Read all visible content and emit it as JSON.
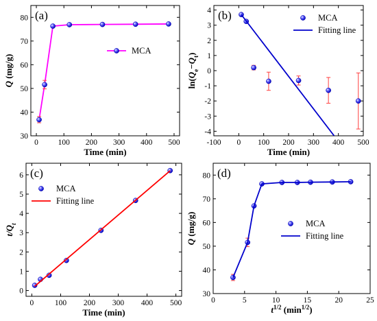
{
  "chart_data": [
    {
      "id": "a",
      "panel_label": "(a)",
      "type": "line",
      "xlabel": "Time (min)",
      "ylabel": "Q (mg/g)",
      "xlim": [
        -20,
        520
      ],
      "ylim": [
        30,
        85
      ],
      "xticks": [
        0,
        100,
        200,
        300,
        400,
        500
      ],
      "yticks": [
        30,
        40,
        50,
        60,
        70,
        80
      ],
      "legend_position": "center-right",
      "series": [
        {
          "name": "MCA",
          "kind": "line-marker",
          "color": "#ff00ff",
          "marker": "sphere",
          "x": [
            10,
            30,
            60,
            120,
            240,
            360,
            480
          ],
          "y": [
            36.8,
            51.6,
            76.3,
            76.9,
            77.0,
            77.1,
            77.2
          ],
          "err": [
            1.3,
            1.8,
            0,
            0,
            0,
            0,
            0
          ]
        }
      ]
    },
    {
      "id": "b",
      "panel_label": "(b)",
      "type": "scatter",
      "xlabel": "Time (min)",
      "ylabel": "ln(Qe−Qt)",
      "xlim": [
        -100,
        500
      ],
      "ylim": [
        -4.3,
        4.3
      ],
      "xticks": [
        -100,
        0,
        100,
        200,
        300,
        400,
        500
      ],
      "yticks": [
        -4,
        -3,
        -2,
        -1,
        0,
        1,
        2,
        3,
        4
      ],
      "legend_position": "top-right",
      "series": [
        {
          "name": "MCA",
          "kind": "scatter",
          "color": "#1a1aff",
          "marker": "sphere",
          "x": [
            10,
            30,
            60,
            120,
            240,
            360,
            480
          ],
          "y": [
            3.7,
            3.25,
            0.2,
            -0.7,
            -0.65,
            -1.3,
            -2.0
          ],
          "err": [
            0,
            0,
            0.15,
            0.6,
            0.3,
            0.85,
            1.85
          ]
        },
        {
          "name": "Fitting line",
          "kind": "line",
          "color": "#0000cc",
          "x": [
            10,
            383
          ],
          "y": [
            3.7,
            -4.3
          ]
        }
      ]
    },
    {
      "id": "c",
      "panel_label": "(c)",
      "type": "scatter",
      "xlabel": "Time (min)",
      "ylabel": "t/Qt",
      "xlim": [
        -20,
        520
      ],
      "ylim": [
        -0.3,
        6.6
      ],
      "xticks": [
        0,
        100,
        200,
        300,
        400,
        500
      ],
      "yticks": [
        0,
        1,
        2,
        3,
        4,
        5,
        6
      ],
      "legend_position": "top-left",
      "series": [
        {
          "name": "MCA",
          "kind": "scatter",
          "color": "#1a1aff",
          "marker": "sphere",
          "x": [
            10,
            30,
            60,
            120,
            240,
            360,
            480
          ],
          "y": [
            0.27,
            0.58,
            0.79,
            1.56,
            3.12,
            4.67,
            6.22
          ]
        },
        {
          "name": "Fitting line",
          "kind": "line",
          "color": "#ff0000",
          "x": [
            10,
            480
          ],
          "y": [
            0.22,
            6.21
          ]
        }
      ]
    },
    {
      "id": "d",
      "panel_label": "(d)",
      "type": "line",
      "xlabel": "t1/2 (min1/2)",
      "ylabel": "Q (mg/g)",
      "xlim": [
        0,
        25
      ],
      "ylim": [
        30,
        85
      ],
      "xticks": [
        0,
        5,
        10,
        15,
        20,
        25
      ],
      "yticks": [
        30,
        40,
        50,
        60,
        70,
        80
      ],
      "legend_position": "center-right",
      "series": [
        {
          "name": "MCA",
          "kind": "scatter",
          "color": "#1a1aff",
          "marker": "sphere",
          "x": [
            3.16,
            5.48,
            6.5,
            7.75,
            10.95,
            13.4,
            15.5,
            18.97,
            21.9
          ],
          "y": [
            36.8,
            51.6,
            67.0,
            76.3,
            76.9,
            76.9,
            77.0,
            77.1,
            77.2
          ],
          "err": [
            1.3,
            1.8,
            0,
            0,
            0,
            0,
            0,
            0,
            0
          ]
        },
        {
          "name": "Fitting line",
          "kind": "line",
          "color": "#0000cc",
          "x": [
            3.16,
            5.48,
            6.5,
            7.75,
            10.95,
            13.4,
            15.5,
            18.97,
            21.9
          ],
          "y": [
            36.8,
            51.6,
            67.0,
            76.3,
            76.9,
            76.9,
            77.0,
            77.1,
            77.2
          ]
        }
      ]
    }
  ]
}
